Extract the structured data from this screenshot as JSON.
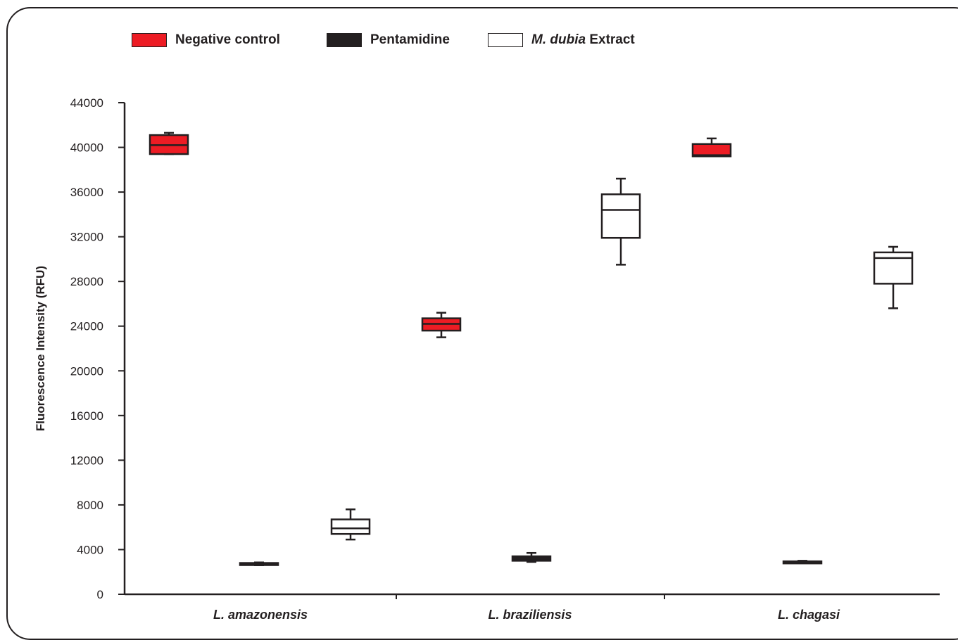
{
  "chart_data": {
    "type": "box",
    "title": "",
    "xlabel": "",
    "ylabel": "Fluorescence Intensity (RFU)",
    "ylim": [
      0,
      44000
    ],
    "yticks": [
      0,
      4000,
      8000,
      12000,
      16000,
      20000,
      24000,
      28000,
      32000,
      36000,
      40000,
      44000
    ],
    "categories": [
      "L. amazonensis",
      "L. braziliensis",
      "L. chagasi"
    ],
    "legend_position": "top",
    "grid": false,
    "series": [
      {
        "name": "Negative control",
        "legend_main": "Negative control",
        "legend_italic": "",
        "color": "#ed1c24",
        "boxes": [
          {
            "min": 39400,
            "q1": 39400,
            "median": 40200,
            "q3": 41100,
            "max": 41300
          },
          {
            "min": 23000,
            "q1": 23600,
            "median": 24200,
            "q3": 24700,
            "max": 25200
          },
          {
            "min": 39200,
            "q1": 39200,
            "median": 39300,
            "q3": 40300,
            "max": 40800
          }
        ]
      },
      {
        "name": "Pentamidine",
        "legend_main": "Pentamidine",
        "legend_italic": "",
        "color": "#231f20",
        "boxes": [
          {
            "min": 2600,
            "q1": 2650,
            "median": 2700,
            "q3": 2800,
            "max": 2850
          },
          {
            "min": 2900,
            "q1": 3000,
            "median": 3200,
            "q3": 3400,
            "max": 3700
          },
          {
            "min": 2800,
            "q1": 2850,
            "median": 2900,
            "q3": 2950,
            "max": 3000
          }
        ]
      },
      {
        "name": "M. dubia Extract",
        "legend_italic": "M. dubia",
        "legend_main": " Extract",
        "color": "#ffffff",
        "boxes": [
          {
            "min": 4900,
            "q1": 5400,
            "median": 5900,
            "q3": 6700,
            "max": 7600
          },
          {
            "min": 29500,
            "q1": 31900,
            "median": 34400,
            "q3": 35800,
            "max": 37200
          },
          {
            "min": 25600,
            "q1": 27800,
            "median": 30100,
            "q3": 30600,
            "max": 31100
          }
        ]
      }
    ]
  }
}
